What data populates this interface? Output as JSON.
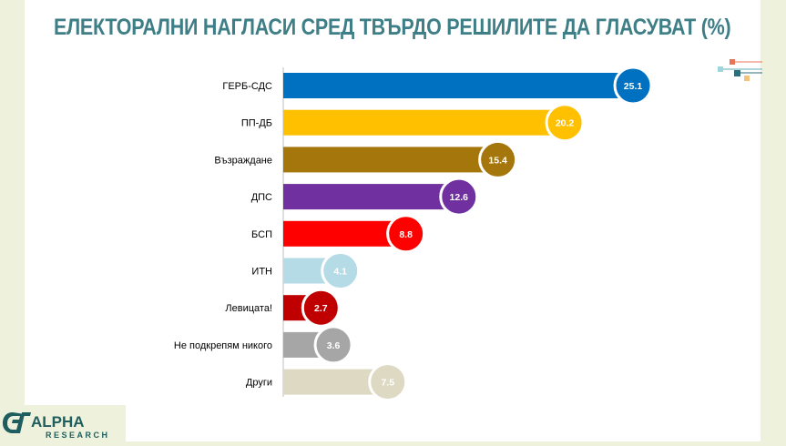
{
  "title": "ЕЛЕКТОРАЛНИ НАГЛАСИ СРЕД ТВЪРДО РЕШИЛИТЕ ДА ГЛАСУВАТ (%)",
  "logo": {
    "name": "ALPHA",
    "sub": "RESEARCH"
  },
  "chart_data": {
    "type": "bar",
    "orientation": "horizontal",
    "title": "ЕЛЕКТОРАЛНИ НАГЛАСИ СРЕД ТВЪРДО РЕШИЛИТЕ ДА ГЛАСУВАТ (%)",
    "xlabel": "",
    "ylabel": "",
    "xlim": [
      0,
      27
    ],
    "grid": false,
    "legend": "none",
    "categories": [
      "ГЕРБ-СДС",
      "ПП-ДБ",
      "Възраждане",
      "ДПС",
      "БСП",
      "ИТН",
      "Левицата!",
      "Не подкрепям никого",
      "Други"
    ],
    "values": [
      25.1,
      20.2,
      15.4,
      12.6,
      8.8,
      4.1,
      2.7,
      3.6,
      7.5
    ],
    "labels": [
      "25.1",
      "20.2",
      "15.4",
      "12.6",
      "8.8",
      "4.1",
      "2.7",
      "3.6",
      "7.5"
    ],
    "colors": [
      "#0070c0",
      "#ffc000",
      "#a5760c",
      "#7030a0",
      "#ff0000",
      "#b4dbe6",
      "#c00000",
      "#a6a6a6",
      "#ddd9c3"
    ]
  }
}
